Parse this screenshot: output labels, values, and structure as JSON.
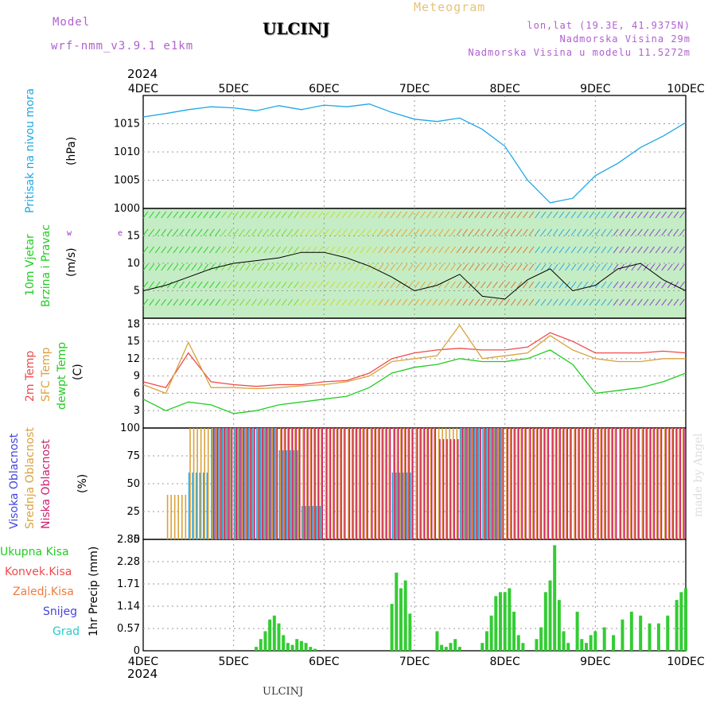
{
  "header": {
    "meteogram": "Meteogram",
    "model_label": "Model",
    "model_name": "wrf-nmm_v3.9.1 e1km",
    "station": "ULCINJ",
    "lonlat": "lon,lat (19.3E, 41.9375N)",
    "elevation": "Nadmorska Visina 29m",
    "model_elevation": "Nadmorska Visina u modelu 11.5272m",
    "footer_station": "ULCINJ",
    "credit": "made by Angel"
  },
  "colors": {
    "pressure": "#1ea7e6",
    "wind_speed": "#000000",
    "temp2m": "#ef4b4b",
    "sfc": "#d9a23c",
    "dewpt": "#22cc22",
    "high_cloud": "#1ea7e6",
    "mid_cloud": "#d9a23c",
    "low_cloud": "#d0206c",
    "total_precip": "#33cc33",
    "conv_precip": "#ef4b4b",
    "grid_precip": "#f07a3c",
    "snow": "#4444dd",
    "hail": "#22cccc",
    "axis_labels": "#33cc33",
    "wind_dir": "#9933cc"
  },
  "chart_data": [
    {
      "type": "line",
      "panel": "pressure",
      "ylabel": [
        "Pritisak na nivou mora",
        "(hPa)"
      ],
      "xlim": [
        0,
        6
      ],
      "ylim": [
        1000,
        1020
      ],
      "yticks": [
        1000,
        1005,
        1010,
        1015
      ],
      "grid": true,
      "x": [
        0,
        0.25,
        0.5,
        0.75,
        1.0,
        1.25,
        1.5,
        1.75,
        2.0,
        2.25,
        2.5,
        2.75,
        3.0,
        3.25,
        3.5,
        3.75,
        4.0,
        4.25,
        4.5,
        4.75,
        5.0,
        5.25,
        5.5,
        5.75,
        6.0
      ],
      "series": [
        {
          "name": "pressure",
          "values": [
            1016.2,
            1016.8,
            1017.5,
            1018.0,
            1017.8,
            1017.3,
            1018.2,
            1017.5,
            1018.3,
            1018.0,
            1018.5,
            1017.0,
            1015.8,
            1015.4,
            1016.0,
            1014.0,
            1011.0,
            1005.0,
            1001.0,
            1001.8,
            1005.8,
            1008.0,
            1010.8,
            1012.8,
            1015.2
          ]
        }
      ]
    },
    {
      "type": "line",
      "panel": "wind",
      "ylabel": [
        "10m Vjetar",
        "Brzina i Pravac",
        "(m/s)"
      ],
      "direction_key": [
        "w",
        "e",
        "n",
        "s"
      ],
      "xlim": [
        0,
        6
      ],
      "ylim": [
        0,
        20
      ],
      "yticks": [
        5,
        10,
        15
      ],
      "grid": true,
      "x": [
        0,
        0.25,
        0.5,
        0.75,
        1.0,
        1.25,
        1.5,
        1.75,
        2.0,
        2.25,
        2.5,
        2.75,
        3.0,
        3.25,
        3.5,
        3.75,
        4.0,
        4.25,
        4.5,
        4.75,
        5.0,
        5.25,
        5.5,
        5.75,
        6.0
      ],
      "series": [
        {
          "name": "wind speed",
          "values": [
            5,
            6,
            7.5,
            9,
            10,
            10.5,
            11,
            12,
            12,
            11,
            9.5,
            7.5,
            5,
            6,
            8,
            4,
            3.5,
            7,
            9,
            5,
            6,
            9,
            10,
            7,
            5
          ]
        }
      ]
    },
    {
      "type": "line",
      "panel": "temperature",
      "ylabel": [
        "2m Temp",
        "SFC Temp",
        "dewpt Temp",
        "(C)"
      ],
      "xlim": [
        0,
        6
      ],
      "ylim": [
        0,
        19
      ],
      "yticks": [
        3,
        6,
        9,
        12,
        15,
        18
      ],
      "grid": true,
      "x": [
        0,
        0.25,
        0.5,
        0.75,
        1.0,
        1.25,
        1.5,
        1.75,
        2.0,
        2.25,
        2.5,
        2.75,
        3.0,
        3.25,
        3.5,
        3.75,
        4.0,
        4.25,
        4.5,
        4.75,
        5.0,
        5.25,
        5.5,
        5.75,
        6.0
      ],
      "series": [
        {
          "name": "2m Temp",
          "values": [
            8,
            7,
            13,
            8,
            7.5,
            7.2,
            7.5,
            7.5,
            8.0,
            8.2,
            9.5,
            12,
            13,
            13.5,
            13.8,
            13.5,
            13.5,
            14,
            16.5,
            15,
            13,
            13,
            13,
            13.3,
            13
          ]
        },
        {
          "name": "SFC Temp",
          "values": [
            7.5,
            6,
            14.8,
            7,
            7,
            6.8,
            7,
            7.3,
            7.5,
            8,
            9,
            11.5,
            12,
            12.5,
            17.8,
            12,
            12.5,
            13,
            16,
            13.5,
            12,
            11.5,
            11.5,
            12,
            12
          ]
        },
        {
          "name": "dewpt Temp",
          "values": [
            5,
            3,
            4.5,
            4,
            2.5,
            3,
            4,
            4.5,
            5,
            5.5,
            7,
            9.5,
            10.5,
            11,
            12,
            11.5,
            11.5,
            12,
            13.5,
            11,
            6,
            6.5,
            7,
            8,
            9.5
          ]
        }
      ]
    },
    {
      "type": "bar",
      "panel": "clouds",
      "ylabel": [
        "Visoka Oblacnost",
        "Srednja Oblacnost",
        "Niska Oblacnost",
        "(%)"
      ],
      "xlim": [
        0,
        6
      ],
      "ylim": [
        0,
        100
      ],
      "yticks": [
        0,
        25,
        50,
        75,
        100
      ],
      "grid": true,
      "x": [
        0,
        0.25,
        0.5,
        0.75,
        1.0,
        1.25,
        1.5,
        1.75,
        2.0,
        2.25,
        2.5,
        2.75,
        3.0,
        3.25,
        3.5,
        3.75,
        4.0,
        4.25,
        4.5,
        4.75,
        5.0,
        5.25,
        5.5,
        5.75,
        6.0
      ],
      "series": [
        {
          "name": "Visoka Oblacnost",
          "values": [
            0,
            0,
            60,
            100,
            100,
            100,
            80,
            30,
            0,
            0,
            0,
            60,
            0,
            0,
            100,
            100,
            0,
            0,
            0,
            0,
            0,
            0,
            0,
            0,
            0
          ]
        },
        {
          "name": "Srednja Oblacnost",
          "values": [
            0,
            40,
            100,
            100,
            100,
            100,
            100,
            100,
            100,
            100,
            100,
            100,
            100,
            100,
            100,
            100,
            100,
            100,
            100,
            100,
            100,
            100,
            100,
            100,
            100
          ]
        },
        {
          "name": "Niska Oblacnost",
          "values": [
            0,
            0,
            0,
            100,
            100,
            100,
            100,
            100,
            100,
            100,
            100,
            100,
            100,
            90,
            100,
            100,
            100,
            100,
            100,
            100,
            100,
            100,
            100,
            100,
            100
          ]
        }
      ]
    },
    {
      "type": "bar",
      "panel": "precipitation",
      "ylabel": [
        "Ukupna Kisa",
        "Konvek.Kisa",
        "Zaledj.Kisa",
        "Snijeg",
        "Grad",
        "1hr Precip (mm)"
      ],
      "xlim": [
        0,
        6
      ],
      "ylim": [
        0,
        2.85
      ],
      "yticks": [
        "0",
        "0.57",
        "1.14",
        "1.71",
        "2.28",
        "2.85"
      ],
      "grid": true,
      "x": [
        1.25,
        1.3,
        1.35,
        1.4,
        1.45,
        1.5,
        1.55,
        1.6,
        1.65,
        1.7,
        1.75,
        1.8,
        1.85,
        1.9,
        2.75,
        2.8,
        2.85,
        2.9,
        2.95,
        3.25,
        3.3,
        3.35,
        3.4,
        3.45,
        3.5,
        3.75,
        3.8,
        3.85,
        3.9,
        3.95,
        4.0,
        4.05,
        4.1,
        4.15,
        4.2,
        4.35,
        4.4,
        4.45,
        4.5,
        4.55,
        4.6,
        4.65,
        4.7,
        4.8,
        4.85,
        4.9,
        4.95,
        5.0,
        5.1,
        5.2,
        5.3,
        5.4,
        5.5,
        5.6,
        5.7,
        5.8,
        5.9,
        5.95,
        6.0
      ],
      "series": [
        {
          "name": "Ukupna Kisa",
          "values": [
            0.1,
            0.3,
            0.5,
            0.8,
            0.9,
            0.7,
            0.4,
            0.2,
            0.15,
            0.3,
            0.25,
            0.2,
            0.1,
            0.05,
            1.2,
            2.0,
            1.6,
            1.8,
            0.95,
            0.5,
            0.15,
            0.1,
            0.2,
            0.3,
            0.1,
            0.2,
            0.5,
            0.9,
            1.4,
            1.5,
            1.5,
            1.6,
            1.0,
            0.4,
            0.2,
            0.3,
            0.6,
            1.5,
            1.8,
            2.7,
            1.3,
            0.5,
            0.2,
            1.0,
            0.3,
            0.2,
            0.4,
            0.5,
            0.6,
            0.4,
            0.8,
            1.0,
            0.9,
            0.7,
            0.7,
            0.9,
            1.3,
            1.5,
            1.6
          ]
        }
      ]
    }
  ],
  "xaxis": {
    "top_year": "2024",
    "bottom_year": "2024",
    "days": [
      "4DEC",
      "5DEC",
      "6DEC",
      "7DEC",
      "8DEC",
      "9DEC",
      "10DEC"
    ]
  }
}
